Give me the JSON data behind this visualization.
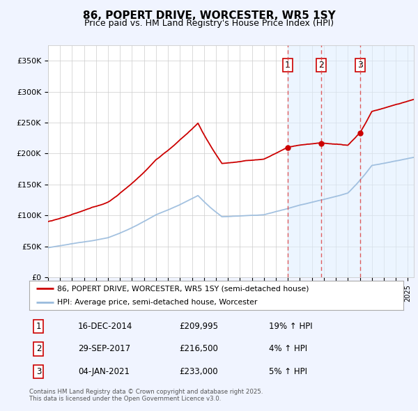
{
  "title": "86, POPERT DRIVE, WORCESTER, WR5 1SY",
  "subtitle": "Price paid vs. HM Land Registry's House Price Index (HPI)",
  "ylabel_ticks": [
    "£0",
    "£50K",
    "£100K",
    "£150K",
    "£200K",
    "£250K",
    "£300K",
    "£350K"
  ],
  "ytick_vals": [
    0,
    50000,
    100000,
    150000,
    200000,
    250000,
    300000,
    350000
  ],
  "ylim": [
    0,
    375000
  ],
  "xlim_start": 1995.0,
  "xlim_end": 2025.5,
  "red_line_color": "#cc0000",
  "blue_line_color": "#99bbdd",
  "blue_fill_color": "#ddeeff",
  "marker_box_color": "#cc0000",
  "vline_color": "#dd4444",
  "sale_dates": [
    2014.96,
    2017.75,
    2021.02
  ],
  "sale_prices": [
    209995,
    216500,
    233000
  ],
  "sale_labels": [
    "1",
    "2",
    "3"
  ],
  "shade_start": 2014.96,
  "legend_entries": [
    "86, POPERT DRIVE, WORCESTER, WR5 1SY (semi-detached house)",
    "HPI: Average price, semi-detached house, Worcester"
  ],
  "table_rows": [
    [
      "1",
      "16-DEC-2014",
      "£209,995",
      "19% ↑ HPI"
    ],
    [
      "2",
      "29-SEP-2017",
      "£216,500",
      "4% ↑ HPI"
    ],
    [
      "3",
      "04-JAN-2021",
      "£233,000",
      "5% ↑ HPI"
    ]
  ],
  "footnote": "Contains HM Land Registry data © Crown copyright and database right 2025.\nThis data is licensed under the Open Government Licence v3.0.",
  "bg_color": "#f0f4ff",
  "plot_bg_color": "#ffffff",
  "legend_bg": "#ffffff"
}
